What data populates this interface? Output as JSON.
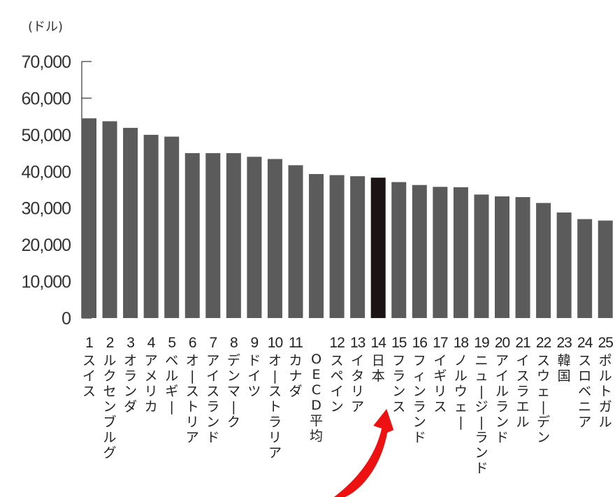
{
  "chart_data": {
    "type": "bar",
    "unit_label": "(ドル)",
    "y_ticks": [
      "70,000",
      "60,000",
      "50,000",
      "40,000",
      "30,000",
      "20,000",
      "10,000",
      "0"
    ],
    "ylim": [
      0,
      70000
    ],
    "grid": false,
    "categories": [
      {
        "rank": "1",
        "name": "スイス",
        "value": 54500
      },
      {
        "rank": "2",
        "name": "ルクセンブルグ",
        "value": 53700
      },
      {
        "rank": "3",
        "name": "オランダ",
        "value": 51900
      },
      {
        "rank": "4",
        "name": "アメリカ",
        "value": 50000
      },
      {
        "rank": "5",
        "name": "ベルギー",
        "value": 49500
      },
      {
        "rank": "6",
        "name": "オーストリア",
        "value": 45000
      },
      {
        "rank": "7",
        "name": "アイスランド",
        "value": 45000
      },
      {
        "rank": "8",
        "name": "デンマーク",
        "value": 45000
      },
      {
        "rank": "9",
        "name": "ドイツ",
        "value": 44000
      },
      {
        "rank": "10",
        "name": "オーストラリア",
        "value": 43400
      },
      {
        "rank": "11",
        "name": "カナダ",
        "value": 41700
      },
      {
        "rank": "",
        "name": "OECD平均",
        "value": 39300
      },
      {
        "rank": "12",
        "name": "スペイン",
        "value": 39000
      },
      {
        "rank": "13",
        "name": "イタリア",
        "value": 38700
      },
      {
        "rank": "14",
        "name": "日本",
        "value": 38300
      },
      {
        "rank": "15",
        "name": "フランス",
        "value": 37100
      },
      {
        "rank": "16",
        "name": "フィンランド",
        "value": 36300
      },
      {
        "rank": "17",
        "name": "イギリス",
        "value": 35800
      },
      {
        "rank": "18",
        "name": "ノルウェー",
        "value": 35700
      },
      {
        "rank": "19",
        "name": "ニュージーランド",
        "value": 33700
      },
      {
        "rank": "20",
        "name": "アイルランド",
        "value": 33200
      },
      {
        "rank": "21",
        "name": "イスラエル",
        "value": 33000
      },
      {
        "rank": "22",
        "name": "スウェーデン",
        "value": 31400
      },
      {
        "rank": "23",
        "name": "韓国",
        "value": 28800
      },
      {
        "rank": "24",
        "name": "スロベニア",
        "value": 27000
      },
      {
        "rank": "25",
        "name": "ポルトガル",
        "value": 26600
      }
    ],
    "highlight_category": "日本",
    "colors": {
      "bar": "#5b5b5b",
      "highlight_bar": "#1c1414",
      "arrow": "#ee1111",
      "axis": "#444444"
    }
  }
}
